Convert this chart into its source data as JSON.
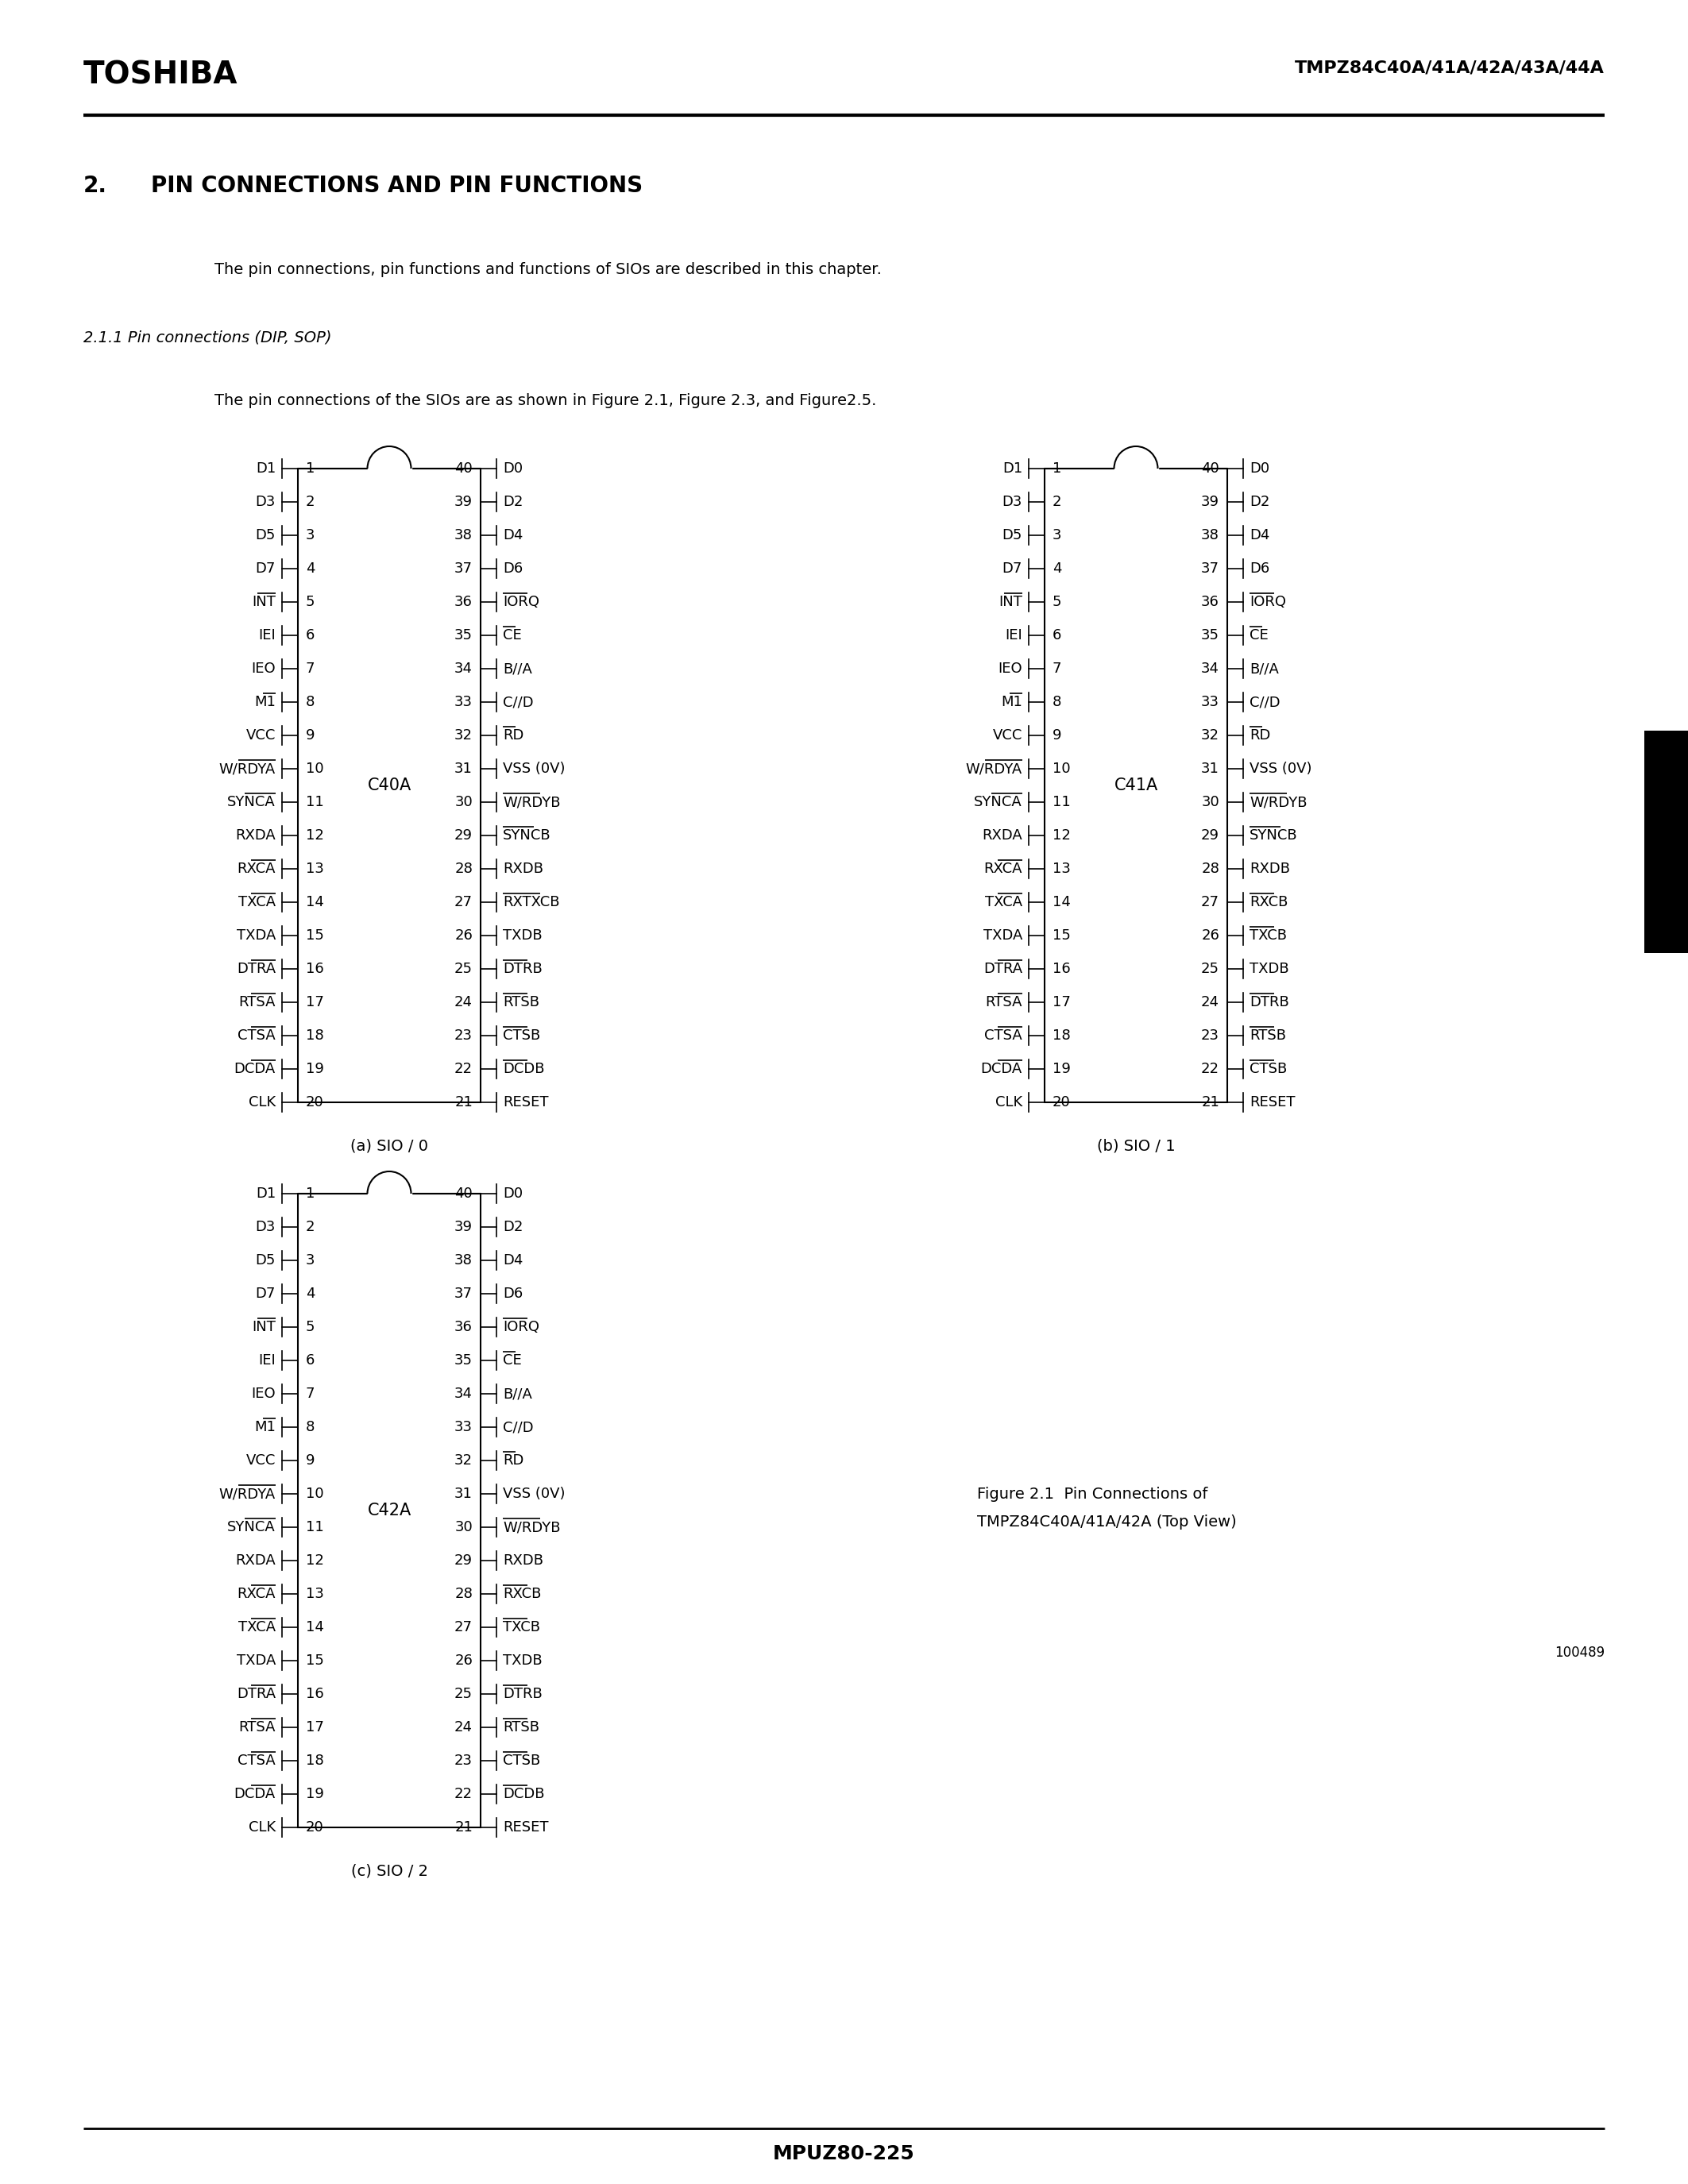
{
  "title_left": "TOSHIBA",
  "title_right": "TMPZ84C40A/41A/42A/43A/44A",
  "section_num": "2.",
  "section_title": "PIN CONNECTIONS AND PIN FUNCTIONS",
  "para1": "The pin connections, pin functions and functions of SIOs are described in this chapter.",
  "subsection": "2.1.1 Pin connections (DIP, SOP)",
  "para2": "The pin connections of the SIOs are as shown in Figure 2.1, Figure 2.3, and Figure2.5.",
  "footer": "MPUZ80-225",
  "fig_label1": "Figure 2.1  Pin Connections of",
  "fig_label2": "TMPZ84C40A/41A/42A (Top View)",
  "fig_note": "100489",
  "caption_a": "(a) SIO / 0",
  "caption_b": "(b) SIO / 1",
  "caption_c": "(c) SIO / 2",
  "left_pins": [
    "D1",
    "D3",
    "D5",
    "D7",
    "/INT",
    "IEI",
    "IEO",
    "/M1",
    "VCC",
    "/W/RDYA",
    "/SYNCA",
    "RXDA",
    "/RXCA",
    "/TXCA",
    "TXDA",
    "/DTRA",
    "/RTSA",
    "/CTSA",
    "/DCDA",
    "CLK"
  ],
  "right_pins_a": [
    "D0",
    "D2",
    "D4",
    "D6",
    "/IORQ",
    "/CE",
    "B//A",
    "C//D",
    "/RD",
    "VSS (0V)",
    "/W/RDYB",
    "/SYNCB",
    "RXDB",
    "/RXTXCB",
    "TXDB",
    "/DTRB",
    "/RTSB",
    "/CTSB",
    "/DCDB",
    "RESET"
  ],
  "right_pins_b": [
    "D0",
    "D2",
    "D4",
    "D6",
    "/IORQ",
    "/CE",
    "B//A",
    "C//D",
    "/RD",
    "VSS (0V)",
    "/W/RDYB",
    "/SYNCB",
    "RXDB",
    "/RXCB",
    "/TXCB",
    "TXDB",
    "/DTRB",
    "/RTSB",
    "/CTSB",
    "RESET"
  ],
  "right_pins_c": [
    "D0",
    "D2",
    "D4",
    "D6",
    "/IORQ",
    "/CE",
    "B//A",
    "C//D",
    "/RD",
    "VSS (0V)",
    "/W/RDYB",
    "RXDB",
    "/RXCB",
    "/TXCB",
    "TXDB",
    "/DTRB",
    "/RTSB",
    "/CTSB",
    "/DCDB",
    "RESET"
  ],
  "chip_labels": [
    "C40A",
    "C41A",
    "C42A"
  ],
  "bg_color": "#ffffff"
}
